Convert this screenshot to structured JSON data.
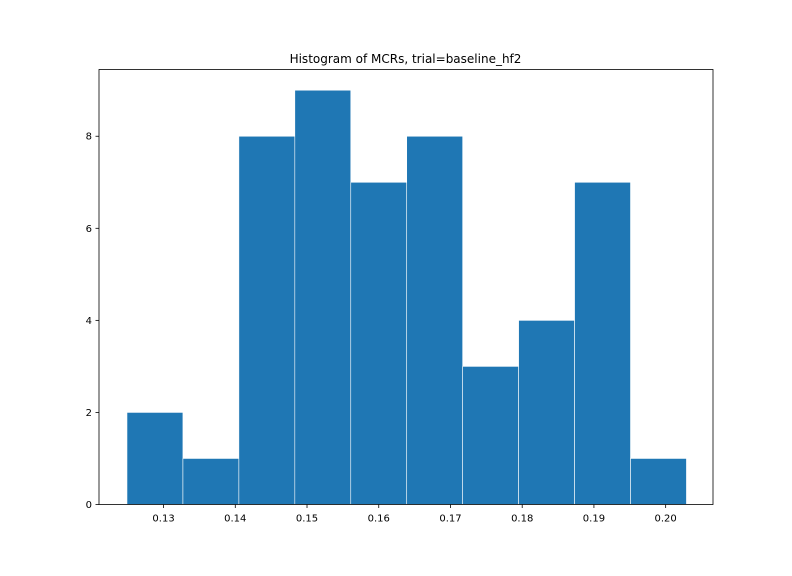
{
  "chart_data": {
    "type": "bar",
    "title": "Histogram of MCRs, trial=baseline_hf2",
    "xlabel": "",
    "ylabel": "",
    "bin_edges": [
      0.1249,
      0.1327,
      0.1405,
      0.1483,
      0.1561,
      0.1639,
      0.1717,
      0.1795,
      0.1873,
      0.1951,
      0.2029
    ],
    "values": [
      2,
      1,
      8,
      9,
      7,
      8,
      3,
      4,
      7,
      1
    ],
    "xlim": [
      0.121,
      0.2066
    ],
    "ylim": [
      0,
      9.45
    ],
    "xticks": [
      0.13,
      0.14,
      0.15,
      0.16,
      0.17,
      0.18,
      0.19,
      0.2
    ],
    "xtick_labels": [
      "0.13",
      "0.14",
      "0.15",
      "0.16",
      "0.17",
      "0.18",
      "0.19",
      "0.20"
    ],
    "yticks": [
      0,
      2,
      4,
      6,
      8
    ],
    "ytick_labels": [
      "0",
      "2",
      "4",
      "6",
      "8"
    ],
    "bar_color": "#1f77b4",
    "edge_color": "#ffffff",
    "grid": false,
    "legend": "none"
  }
}
